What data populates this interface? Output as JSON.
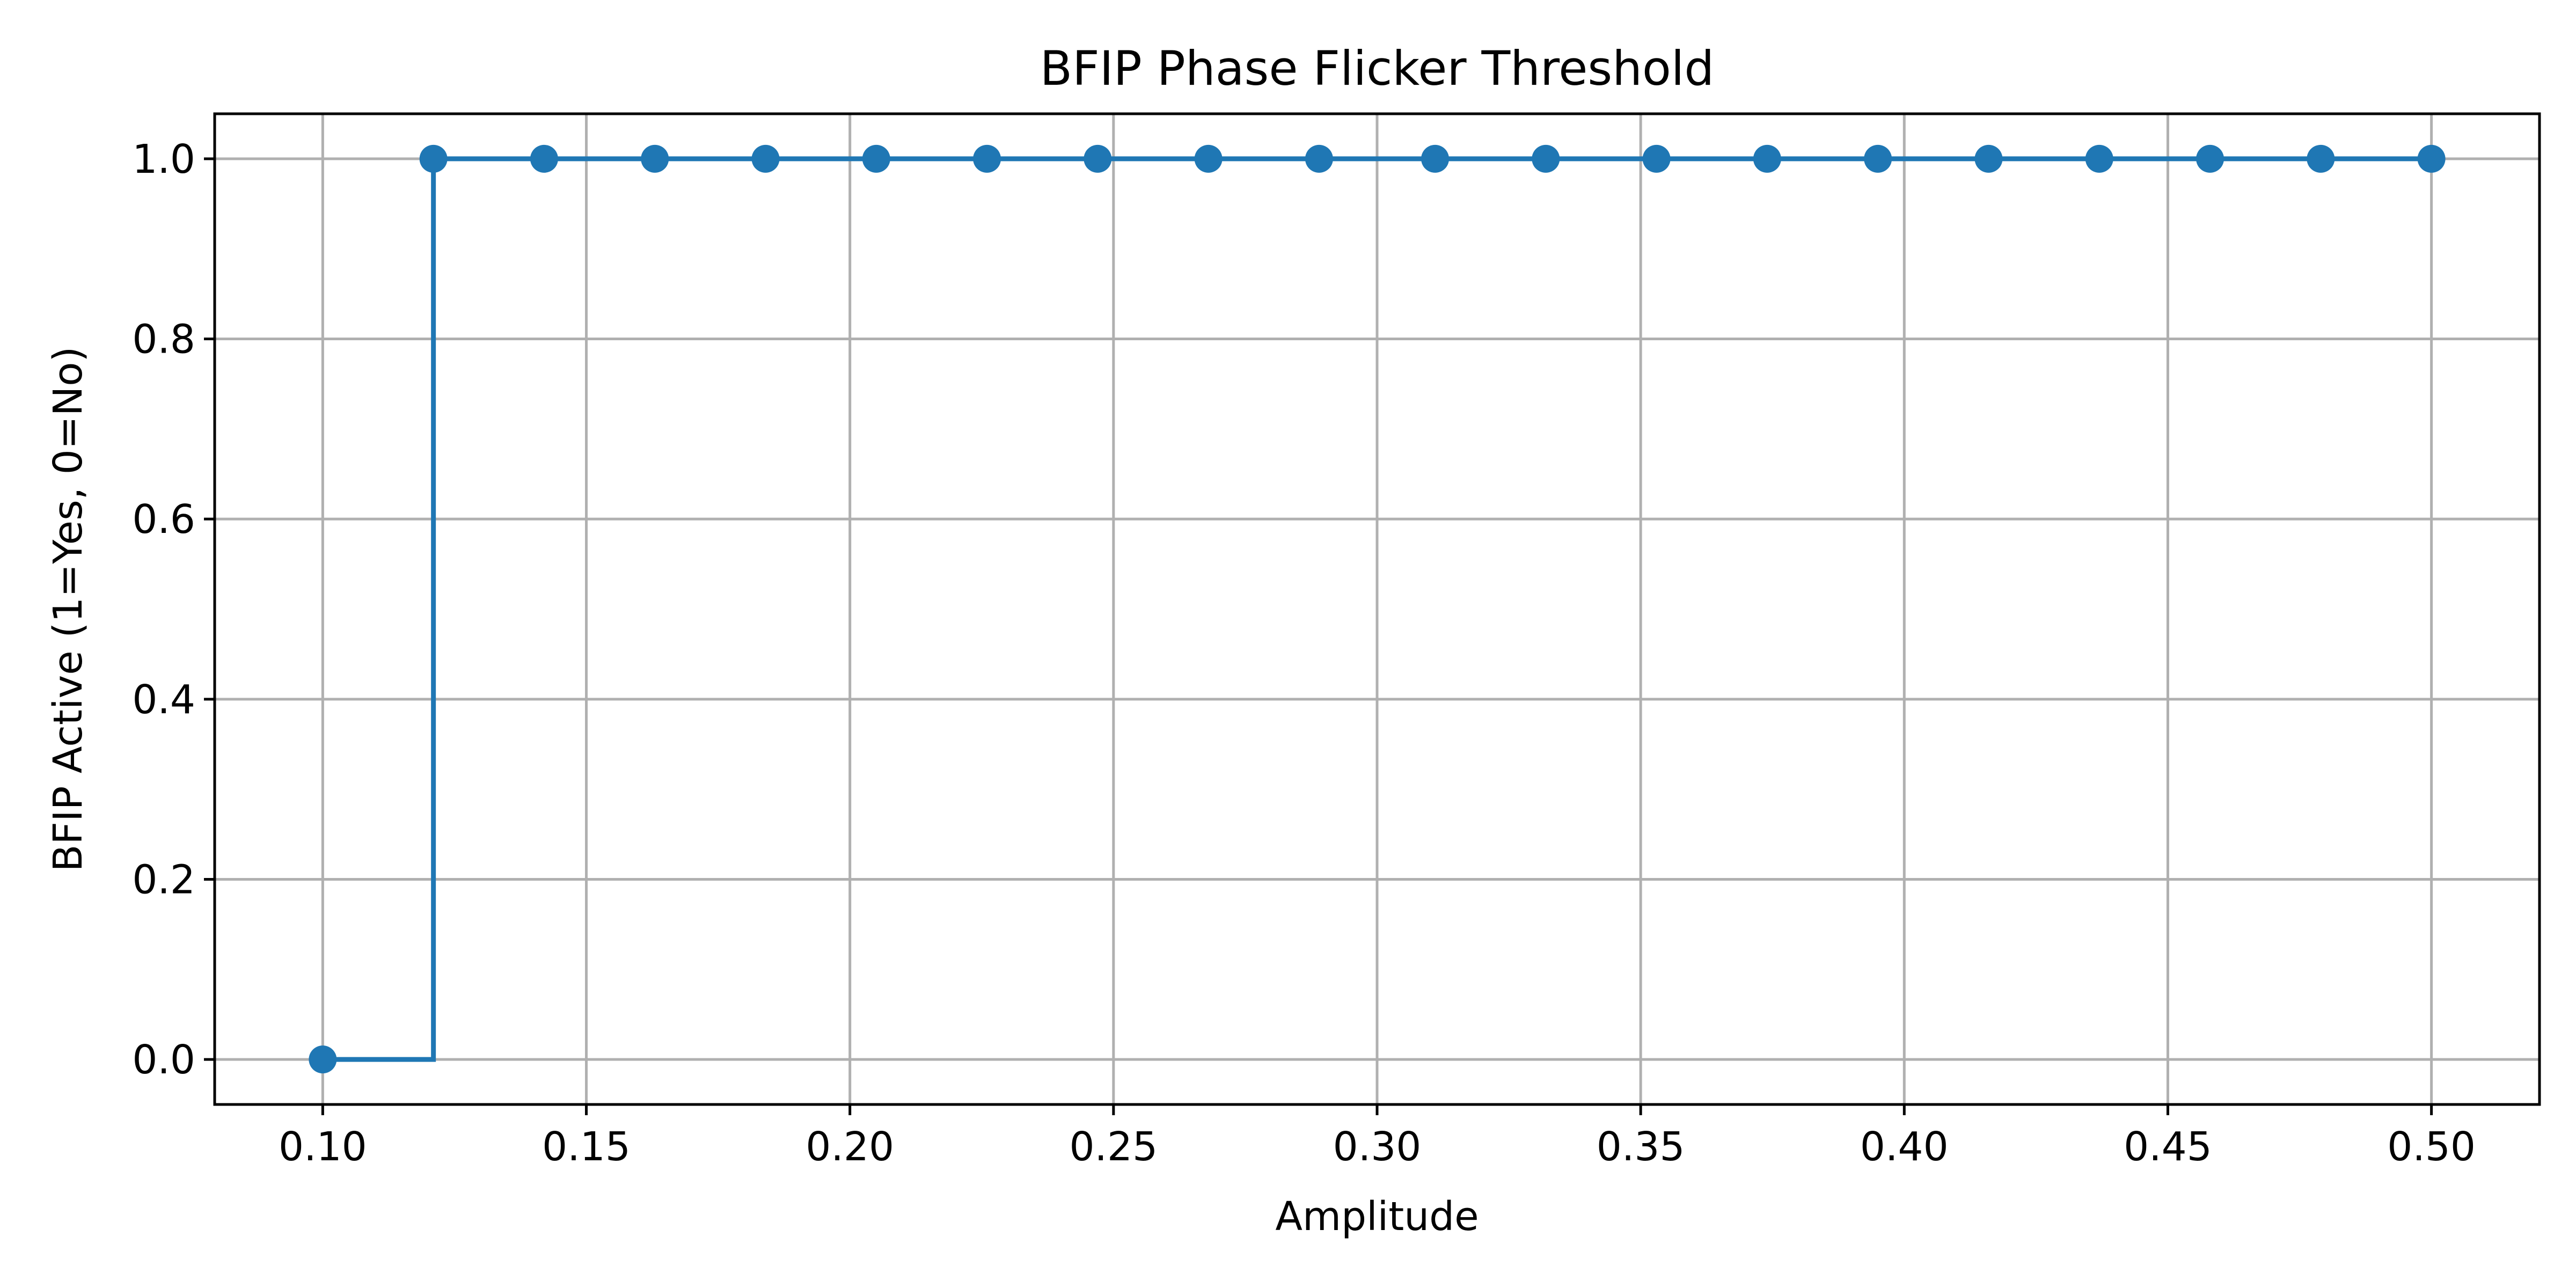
{
  "chart_data": {
    "type": "line",
    "title": "BFIP Phase Flicker Threshold",
    "xlabel": "Amplitude",
    "ylabel": "BFIP Active (1=Yes, 0=No)",
    "xlim": [
      0.0795,
      0.5205
    ],
    "ylim": [
      -0.05,
      1.05
    ],
    "grid": true,
    "step": "post",
    "markers": true,
    "line_color": "#1f77b4",
    "x_ticks": [
      0.1,
      0.15,
      0.2,
      0.25,
      0.3,
      0.35,
      0.4,
      0.45,
      0.5
    ],
    "x_tick_labels": [
      "0.10",
      "0.15",
      "0.20",
      "0.25",
      "0.30",
      "0.35",
      "0.40",
      "0.45",
      "0.50"
    ],
    "y_ticks": [
      0.0,
      0.2,
      0.4,
      0.6,
      0.8,
      1.0
    ],
    "y_tick_labels": [
      "0.0",
      "0.2",
      "0.4",
      "0.6",
      "0.8",
      "1.0"
    ],
    "series": [
      {
        "x": [
          0.1,
          0.121,
          0.142,
          0.163,
          0.184,
          0.205,
          0.226,
          0.247,
          0.268,
          0.289,
          0.311,
          0.332,
          0.353,
          0.374,
          0.395,
          0.416,
          0.437,
          0.458,
          0.479,
          0.5
        ],
        "y": [
          0,
          1,
          1,
          1,
          1,
          1,
          1,
          1,
          1,
          1,
          1,
          1,
          1,
          1,
          1,
          1,
          1,
          1,
          1,
          1
        ]
      }
    ]
  }
}
